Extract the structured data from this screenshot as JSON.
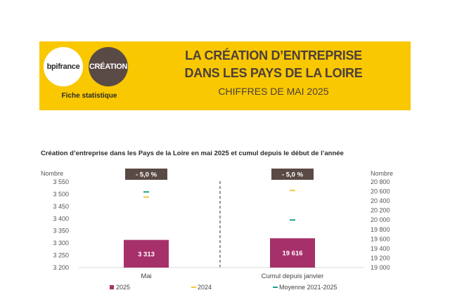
{
  "banner": {
    "logo_bpi": "bpifrance",
    "logo_creation": "CRÉATION",
    "fiche": "Fiche statistique",
    "title_line1": "LA CRÉATION D’ENTREPRISE",
    "title_line2": "DANS LES PAYS DE LA LOIRE",
    "title_line3": "CHIFFRES DE MAI 2025"
  },
  "colors": {
    "banner": "#f9c800",
    "bar": "#a6306a",
    "y2024": "#f5c842",
    "avg": "#1aa38a",
    "badge": "#5a4a45"
  },
  "chart_data": {
    "type": "bar",
    "title": "Création d’entreprise dans les Pays de la Loire en mai 2025 et cumul depuis le début de l’année",
    "panels": [
      {
        "category": "Mai",
        "axis": "left",
        "ylabel": "Nombre",
        "ylim": [
          3200,
          3550
        ],
        "ticks": [
          "3 550",
          "3 500",
          "3 450",
          "3 400",
          "3 350",
          "3 300",
          "3 250",
          "3 200"
        ],
        "tick_values": [
          3550,
          3500,
          3450,
          3400,
          3350,
          3300,
          3250,
          3200
        ],
        "value_2025": 3313,
        "value_2025_label": "3 313",
        "value_2024": 3488,
        "value_avg": 3509,
        "badge": "- 5,0 %"
      },
      {
        "category": "Cumul depuis janvier",
        "axis": "right",
        "ylabel": "Nombre",
        "ylim": [
          19000,
          20800
        ],
        "ticks": [
          "20 800",
          "20 600",
          "20 400",
          "20 200",
          "20 000",
          "19 800",
          "19 600",
          "19 400",
          "19 200",
          "19 000"
        ],
        "tick_values": [
          20800,
          20600,
          20400,
          20200,
          20000,
          19800,
          19600,
          19400,
          19200,
          19000
        ],
        "value_2025": 19616,
        "value_2025_label": "19 616",
        "value_2024": 20620,
        "value_avg": 20000,
        "badge": "- 5,0 %"
      }
    ],
    "legend": [
      "2025",
      "2024",
      "Moyenne 2021-2025"
    ],
    "legend_placement": "bottom"
  }
}
